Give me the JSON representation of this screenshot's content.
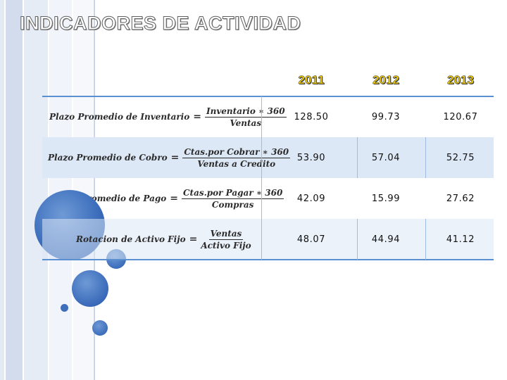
{
  "title": "INDICADORES DE ACTIVIDAD",
  "years": [
    "2011",
    "2012",
    "2013"
  ],
  "rows": [
    {
      "name": "Plazo Promedio de Inventario",
      "numerator": "Inventario ∗ 360",
      "denominator": "Ventas",
      "values": [
        "128.50",
        "99.73",
        "120.67"
      ]
    },
    {
      "name": "Plazo Promedio de Cobro",
      "numerator": "Ctas.por Cobrar ∗ 360",
      "denominator": "Ventas a Credito",
      "values": [
        "53.90",
        "57.04",
        "52.75"
      ]
    },
    {
      "name": "Plazo Promedio de Pago",
      "numerator": "Ctas.por Pagar ∗ 360",
      "denominator": "Compras",
      "values": [
        "42.09",
        "15.99",
        "27.62"
      ]
    },
    {
      "name": "Rotacion de Activo Fijo",
      "numerator": "Ventas",
      "denominator": "Activo Fijo",
      "values": [
        "48.07",
        "44.94",
        "41.12"
      ]
    }
  ],
  "colors": {
    "accent": "#2f63b5",
    "row_shade": "#dce8f6",
    "year_text": "#ffd800",
    "rule": "#5a8fd0"
  }
}
